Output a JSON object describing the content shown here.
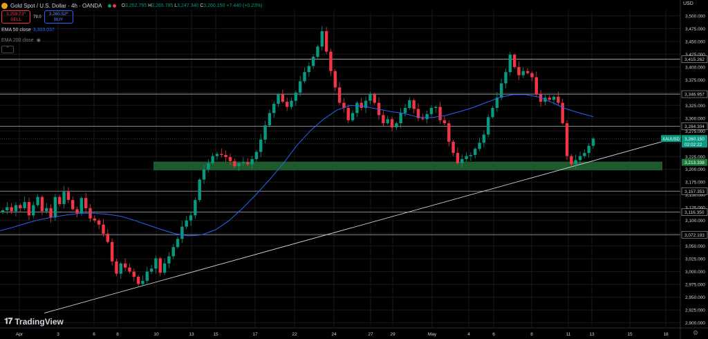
{
  "header": {
    "title": "Gold Spot / U.S. Dollar · 4h · OANDA",
    "ohlc": {
      "o_label": "O",
      "o": "3,252.795",
      "h_label": "H",
      "h": "3,265.785",
      "l_label": "L",
      "l": "3,247.340",
      "c_label": "C",
      "c": "3,260.150",
      "change": "+7.440 (+0.23%)"
    }
  },
  "trade": {
    "sell_price": "3,259.73⁰",
    "sell_label": "SELL",
    "spread": "79.0",
    "buy_price": "3,260.52⁰",
    "buy_label": "BUY"
  },
  "indicators": {
    "ema50_label": "EMA 50 close",
    "ema50_value": "3,303.037",
    "ema200_label": "EMA 200 close"
  },
  "currency_label": "USD",
  "brand": "TradingView",
  "colors": {
    "up": "#089981",
    "down": "#f23645",
    "ema": "#2962ff",
    "zone": "#1e5a2c",
    "grid": "#1a1a1a",
    "bg": "#000000",
    "level": "#b2b5be"
  },
  "chart_data": {
    "type": "candlestick",
    "symbol": "XAUUSD",
    "price_axis_ticks": [
      2900,
      2925,
      2950,
      2975,
      3000,
      3025,
      3050,
      3075,
      3100,
      3125,
      3150,
      3175,
      3200,
      3225,
      3250,
      3275,
      3300,
      3325,
      3350,
      3375,
      3400,
      3425,
      3450,
      3475,
      3500
    ],
    "price_axis_tick_labels": [
      "2,900.000",
      "2,925.000",
      "2,950.000",
      "2,975.000",
      "3,000.000",
      "3,025.000",
      "3,050.000",
      "3,075.000",
      "3,100.000",
      "3,125.000",
      "3,150.000",
      "3,175.000",
      "3,200.000",
      "3,225.000",
      "3,250.000",
      "3,275.000",
      "3,300.000",
      "3,325.000",
      "3,350.000",
      "3,375.000",
      "3,400.000",
      "3,425.000",
      "3,450.000",
      "3,475.000",
      "3,500.000"
    ],
    "ylim": [
      2890,
      3512
    ],
    "time_axis_labels": [
      "Apr",
      "3",
      "6",
      "8",
      "10",
      "13",
      "15",
      "17",
      "22",
      "24",
      "27",
      "29",
      "May",
      "4",
      "6",
      "8",
      "11",
      "13",
      "15",
      "18"
    ],
    "horizontal_levels": [
      3415.262,
      3346.957,
      3284.304,
      3157.353,
      3116.35,
      3072.193
    ],
    "horizontal_level_labels": [
      "3,415.262",
      "3,346.957",
      "3,284.304",
      "3,157.353",
      "3,116.350",
      "3,072.193"
    ],
    "support_zone": {
      "low": 3198,
      "high": 3215,
      "label": "3,213.338"
    },
    "current_price": {
      "symbol": "XAUUSD",
      "price": "3,260.150",
      "countdown": "02:02:22",
      "value": 3260.15
    },
    "trendline": {
      "start_price": 2919,
      "end_price": 3264
    },
    "candle_close_path": [
      3120,
      3126,
      3118,
      3130,
      3124,
      3136,
      3110,
      3130,
      3146,
      3118,
      3124,
      3106,
      3146,
      3132,
      3156,
      3140,
      3122,
      3114,
      3144,
      3124,
      3104,
      3100,
      3092,
      3074,
      3058,
      3020,
      2996,
      3016,
      3008,
      3000,
      2990,
      2976,
      2982,
      3000,
      3006,
      3026,
      2998,
      3016,
      3030,
      3048,
      3064,
      3088,
      3100,
      3110,
      3140,
      3180,
      3200,
      3212,
      3226,
      3230,
      3228,
      3224,
      3216,
      3206,
      3212,
      3214,
      3210,
      3220,
      3234,
      3258,
      3286,
      3310,
      3328,
      3346,
      3332,
      3322,
      3334,
      3350,
      3372,
      3390,
      3402,
      3420,
      3440,
      3470,
      3430,
      3392,
      3360,
      3330,
      3320,
      3296,
      3310,
      3330,
      3320,
      3334,
      3346,
      3330,
      3306,
      3290,
      3298,
      3282,
      3290,
      3310,
      3320,
      3335,
      3318,
      3300,
      3298,
      3308,
      3320,
      3322,
      3296,
      3290,
      3254,
      3232,
      3212,
      3220,
      3226,
      3228,
      3240,
      3252,
      3268,
      3302,
      3320,
      3340,
      3368,
      3390,
      3424,
      3400,
      3384,
      3392,
      3388,
      3380,
      3346,
      3332,
      3340,
      3336,
      3342,
      3330,
      3290,
      3226,
      3210,
      3218,
      3226,
      3232,
      3246,
      3260
    ],
    "ema50_path": [
      3080,
      3087,
      3095,
      3102,
      3107,
      3111,
      3114,
      3114,
      3112,
      3108,
      3100,
      3091,
      3082,
      3074,
      3070,
      3072,
      3082,
      3100,
      3124,
      3151,
      3180,
      3211,
      3246,
      3275,
      3298,
      3316,
      3325,
      3323,
      3318,
      3313,
      3309,
      3302,
      3301,
      3305,
      3312,
      3320,
      3330,
      3340,
      3346,
      3346,
      3341,
      3330,
      3318,
      3310,
      3303
    ]
  }
}
